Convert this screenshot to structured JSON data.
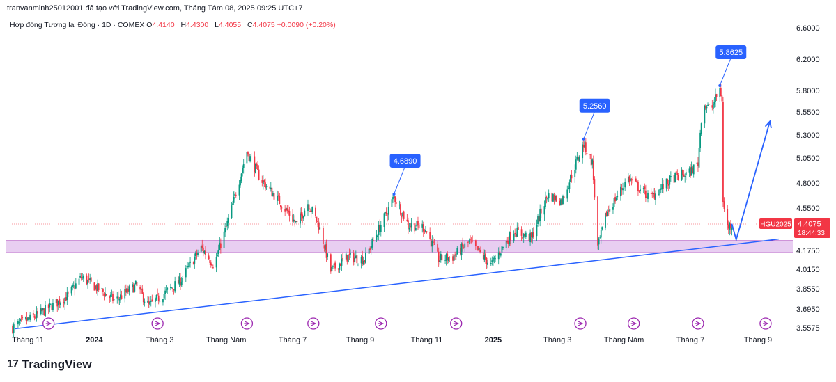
{
  "header": {
    "text": "tranvanminh25012001 đã tạo với TradingView.com, Tháng Tám 08, 2025 09:25 UTC+7"
  },
  "legend": {
    "symbol": "Hợp đồng Tương lai Đồng · 1D · COMEX",
    "open_label": "O",
    "open": "4.4140",
    "high_label": "H",
    "high": "4.4300",
    "low_label": "L",
    "low": "4.4055",
    "close_label": "C",
    "close": "4.4075",
    "change": "+0.0090 (+0.20%)"
  },
  "footer": {
    "brand": "TradingView",
    "mark": "17"
  },
  "colors": {
    "up": "#089981",
    "down": "#f23645",
    "zone_fill": "#e6c9f0",
    "zone_line": "#9c27b0",
    "trend": "#2962ff",
    "callout": "#2962ff",
    "price_tag": "#f23645"
  },
  "chart_data": {
    "type": "candlestick",
    "y_ticks": [
      {
        "label": "6.6000",
        "value": 6.6
      },
      {
        "label": "6.2000",
        "value": 6.2
      },
      {
        "label": "5.8000",
        "value": 5.8
      },
      {
        "label": "5.5500",
        "value": 5.55
      },
      {
        "label": "5.3000",
        "value": 5.3
      },
      {
        "label": "5.0500",
        "value": 5.05
      },
      {
        "label": "4.8000",
        "value": 4.8
      },
      {
        "label": "4.5500",
        "value": 4.55
      },
      {
        "label": "4.1750",
        "value": 4.175
      },
      {
        "label": "4.0150",
        "value": 4.015
      },
      {
        "label": "3.8550",
        "value": 3.855
      },
      {
        "label": "3.6950",
        "value": 3.695
      },
      {
        "label": "3.5575",
        "value": 3.5575
      }
    ],
    "x_ticks": [
      {
        "label": "Tháng 11",
        "date": "2023-11-01",
        "bold": false
      },
      {
        "label": "2024",
        "date": "2024-01-01",
        "bold": true
      },
      {
        "label": "Tháng 3",
        "date": "2024-03-01",
        "bold": false
      },
      {
        "label": "Tháng Năm",
        "date": "2024-05-01",
        "bold": false
      },
      {
        "label": "Tháng 7",
        "date": "2024-07-01",
        "bold": false
      },
      {
        "label": "Tháng 9",
        "date": "2024-09-01",
        "bold": false
      },
      {
        "label": "Tháng 11",
        "date": "2024-11-01",
        "bold": false
      },
      {
        "label": "2025",
        "date": "2025-01-01",
        "bold": true
      },
      {
        "label": "Tháng 3",
        "date": "2025-03-01",
        "bold": false
      },
      {
        "label": "Tháng Năm",
        "date": "2025-05-01",
        "bold": false
      },
      {
        "label": "Tháng 7",
        "date": "2025-07-01",
        "bold": false
      },
      {
        "label": "Tháng 9",
        "date": "2025-09-01",
        "bold": false
      }
    ],
    "anchors": [
      {
        "date": "2023-10-18",
        "price": 3.56
      },
      {
        "date": "2023-11-10",
        "price": 3.65
      },
      {
        "date": "2023-12-08",
        "price": 3.8
      },
      {
        "date": "2023-12-20",
        "price": 3.95
      },
      {
        "date": "2024-01-20",
        "price": 3.76
      },
      {
        "date": "2024-02-08",
        "price": 3.88
      },
      {
        "date": "2024-02-20",
        "price": 3.72
      },
      {
        "date": "2024-03-20",
        "price": 3.92
      },
      {
        "date": "2024-04-08",
        "price": 4.2
      },
      {
        "date": "2024-04-20",
        "price": 4.05
      },
      {
        "date": "2024-05-05",
        "price": 4.5
      },
      {
        "date": "2024-05-20",
        "price": 5.12
      },
      {
        "date": "2024-06-01",
        "price": 4.85
      },
      {
        "date": "2024-06-20",
        "price": 4.6
      },
      {
        "date": "2024-07-05",
        "price": 4.4
      },
      {
        "date": "2024-07-15",
        "price": 4.6
      },
      {
        "date": "2024-07-25",
        "price": 4.4
      },
      {
        "date": "2024-08-05",
        "price": 4.0
      },
      {
        "date": "2024-08-20",
        "price": 4.12
      },
      {
        "date": "2024-09-05",
        "price": 4.1
      },
      {
        "date": "2024-09-25",
        "price": 4.5
      },
      {
        "date": "2024-10-02",
        "price": 4.66
      },
      {
        "date": "2024-10-15",
        "price": 4.4
      },
      {
        "date": "2024-10-30",
        "price": 4.38
      },
      {
        "date": "2024-11-12",
        "price": 4.1
      },
      {
        "date": "2024-11-25",
        "price": 4.12
      },
      {
        "date": "2024-12-10",
        "price": 4.25
      },
      {
        "date": "2024-12-30",
        "price": 4.05
      },
      {
        "date": "2025-01-20",
        "price": 4.35
      },
      {
        "date": "2025-02-05",
        "price": 4.28
      },
      {
        "date": "2025-02-20",
        "price": 4.68
      },
      {
        "date": "2025-03-05",
        "price": 4.62
      },
      {
        "date": "2025-03-25",
        "price": 5.2
      },
      {
        "date": "2025-04-02",
        "price": 5.0
      },
      {
        "date": "2025-04-07",
        "price": 4.2
      },
      {
        "date": "2025-04-15",
        "price": 4.5
      },
      {
        "date": "2025-05-05",
        "price": 4.85
      },
      {
        "date": "2025-05-25",
        "price": 4.65
      },
      {
        "date": "2025-06-15",
        "price": 4.85
      },
      {
        "date": "2025-06-30",
        "price": 4.9
      },
      {
        "date": "2025-07-08",
        "price": 5.0
      },
      {
        "date": "2025-07-12",
        "price": 5.65
      },
      {
        "date": "2025-07-20",
        "price": 5.58
      },
      {
        "date": "2025-07-28",
        "price": 5.82
      },
      {
        "date": "2025-07-30",
        "price": 5.7
      },
      {
        "date": "2025-07-31",
        "price": 4.6
      },
      {
        "date": "2025-08-04",
        "price": 4.38
      },
      {
        "date": "2025-08-08",
        "price": 4.41
      }
    ],
    "callouts": [
      {
        "label": "4.6890",
        "date": "2024-10-02",
        "price": 4.689
      },
      {
        "label": "5.2560",
        "date": "2025-03-25",
        "price": 5.256
      },
      {
        "label": "5.8625",
        "date": "2025-07-28",
        "price": 5.8625
      }
    ],
    "support_zone": {
      "top": 4.26,
      "bottom": 4.155
    },
    "trendline": [
      {
        "date": "2023-10-20",
        "price": 3.55
      },
      {
        "date": "2025-09-20",
        "price": 4.275
      }
    ],
    "projection_arrow": [
      {
        "date": "2025-08-12",
        "price": 4.27
      },
      {
        "date": "2025-09-12",
        "price": 5.45
      }
    ],
    "last_price": {
      "symbol": "HGU2025",
      "price": 4.4075,
      "label": "4.4075",
      "countdown": "18:44:33"
    },
    "event_markers": [
      "2023-11-20",
      "2024-02-28",
      "2024-05-20",
      "2024-07-20",
      "2024-09-20",
      "2024-11-28",
      "2025-03-22",
      "2025-05-10",
      "2025-07-08",
      "2025-09-08"
    ]
  }
}
